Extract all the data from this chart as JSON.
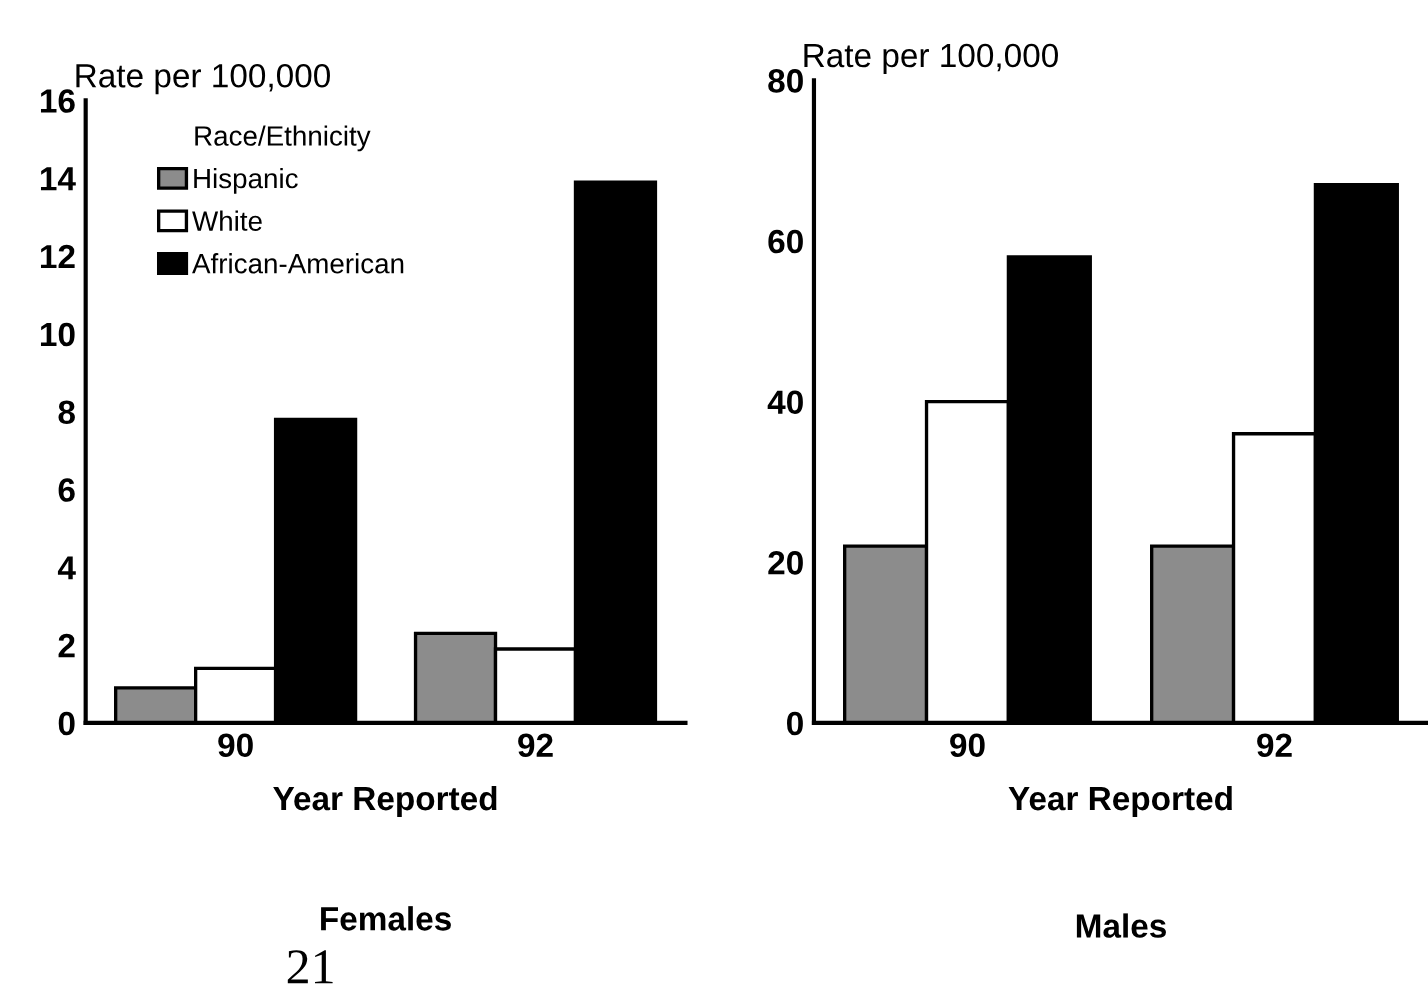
{
  "chart_data": [
    {
      "type": "bar",
      "title": "Females",
      "xlabel": "Year Reported",
      "ylabel": "Rate per 100,000",
      "legend_title": "Race/Ethnicity",
      "categories": [
        "90",
        "92"
      ],
      "series": [
        {
          "name": "Hispanic",
          "color": "#8c8c8c",
          "values": [
            0.9,
            2.3
          ]
        },
        {
          "name": "White",
          "color": "#ffffff",
          "values": [
            1.4,
            1.9
          ]
        },
        {
          "name": "African-American",
          "color": "#000000",
          "values": [
            7.8,
            13.9
          ]
        }
      ],
      "ylim": [
        0,
        16
      ],
      "yticks": [
        0,
        2,
        4,
        6,
        8,
        10,
        12,
        14,
        16
      ],
      "grid": false,
      "legend": "top left",
      "annotations": [
        "21"
      ]
    },
    {
      "type": "bar",
      "title": "Males",
      "xlabel": "Year Reported",
      "ylabel": "Rate per 100,000",
      "categories": [
        "90",
        "92"
      ],
      "series": [
        {
          "color": "#8c8c8c",
          "values": [
            22,
            22
          ]
        },
        {
          "color": "#ffffff",
          "values": [
            40,
            36
          ]
        },
        {
          "color": "#000000",
          "values": [
            58,
            67
          ]
        }
      ],
      "ylim": [
        0,
        80
      ],
      "yticks": [
        0,
        20,
        40,
        60,
        80
      ],
      "grid": false,
      "legend": false
    }
  ]
}
